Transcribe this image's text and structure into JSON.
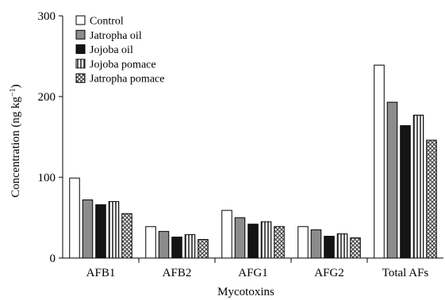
{
  "chart_data": {
    "type": "bar",
    "xlabel": "Mycotoxins",
    "ylabel": "Concentration (ng kg",
    "ylabel_sup": "−1",
    "ylabel_close": ")",
    "ylim": [
      0,
      300
    ],
    "yticks": [
      0,
      100,
      200,
      300
    ],
    "categories": [
      "AFB1",
      "AFB2",
      "AFG1",
      "AFG2",
      "Total AFs"
    ],
    "legend_position": "top-left",
    "grid": false,
    "series": [
      {
        "name": "Control",
        "pattern": "white",
        "values": [
          99,
          39,
          59,
          39,
          239
        ]
      },
      {
        "name": "Jatropha oil",
        "pattern": "gray",
        "values": [
          72,
          33,
          50,
          35,
          193
        ]
      },
      {
        "name": "Jojoba oil",
        "pattern": "black",
        "values": [
          66,
          26,
          42,
          27,
          164
        ]
      },
      {
        "name": "Jojoba pomace",
        "pattern": "vertical-stripes",
        "values": [
          70,
          29,
          45,
          30,
          177
        ]
      },
      {
        "name": "Jatropha pomace",
        "pattern": "crosshatch",
        "values": [
          55,
          23,
          39,
          25,
          146
        ]
      }
    ]
  },
  "colors": {
    "white": "#ffffff",
    "gray": "#8c8c8c",
    "black": "#141414",
    "stripe_bg": "#ffffff",
    "stripe_fg": "#555555",
    "hatch_bg": "#ffffff",
    "hatch_fg": "#444444"
  }
}
